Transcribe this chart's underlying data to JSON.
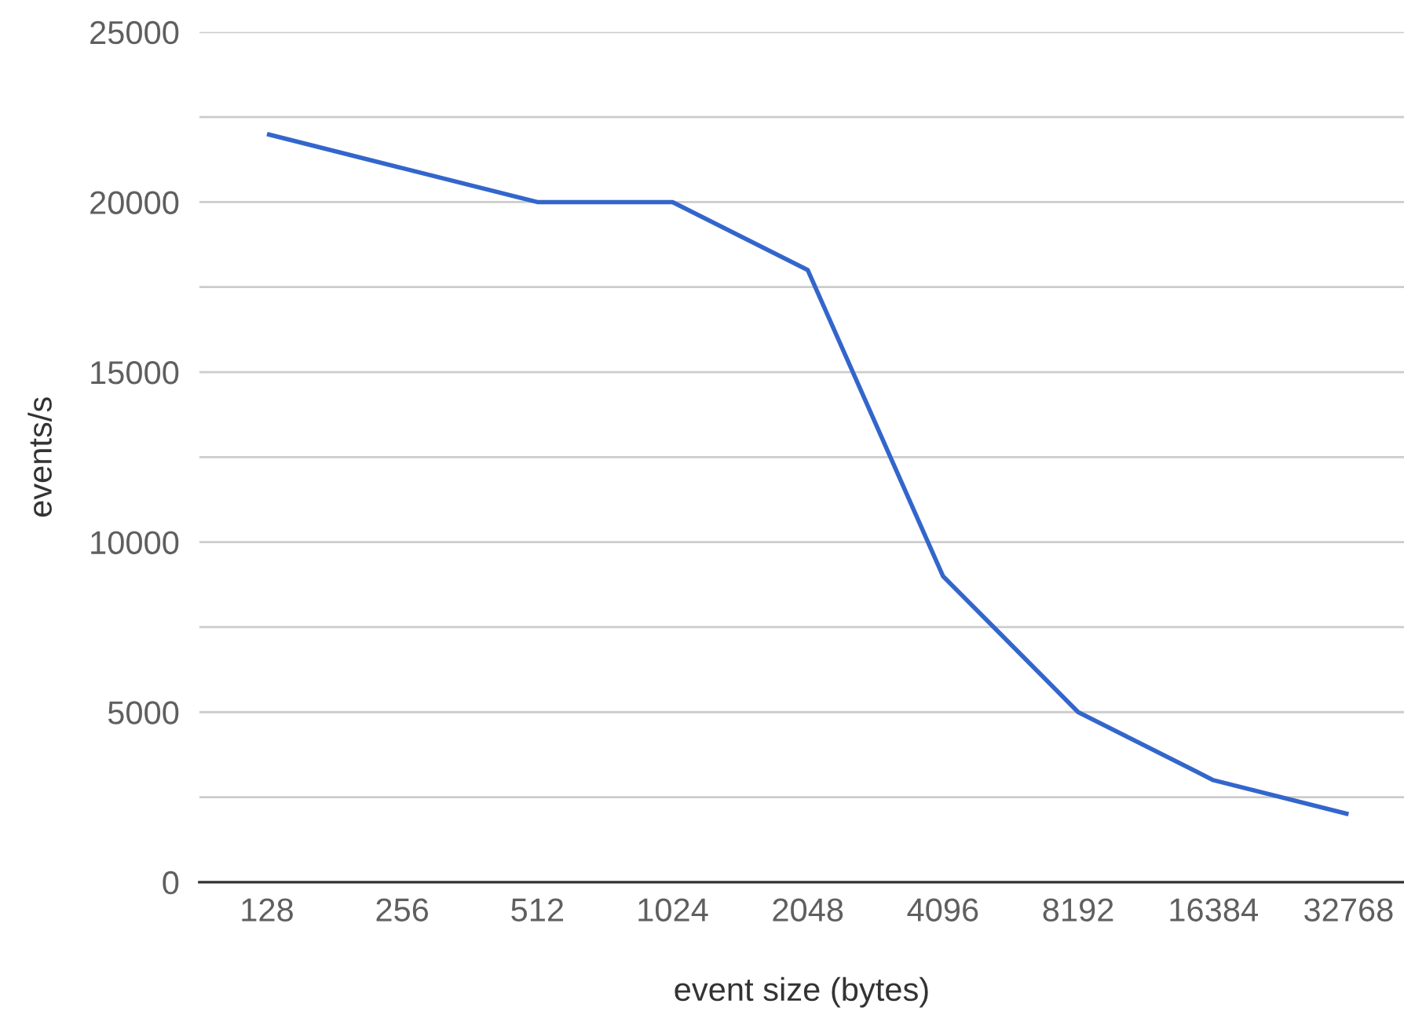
{
  "chart_data": {
    "type": "line",
    "xlabel": "event size (bytes)",
    "ylabel": "events/s",
    "categories": [
      "128",
      "256",
      "512",
      "1024",
      "2048",
      "4096",
      "8192",
      "16384",
      "32768"
    ],
    "series": [
      {
        "color": "#3366cc",
        "values": [
          22000,
          21000,
          20000,
          20000,
          18000,
          9000,
          5000,
          3000,
          2000
        ]
      }
    ],
    "ylim": [
      0,
      25000
    ],
    "yticks": [
      0,
      {
        "value": 2500,
        "label": null
      },
      5000,
      {
        "value": 7500,
        "label": null
      },
      10000,
      {
        "value": 12500,
        "label": null
      },
      15000,
      {
        "value": 17500,
        "label": null
      },
      20000,
      {
        "value": 22500,
        "label": null
      },
      25000
    ],
    "grid": "y",
    "marker": "none",
    "line_style": "solid"
  }
}
